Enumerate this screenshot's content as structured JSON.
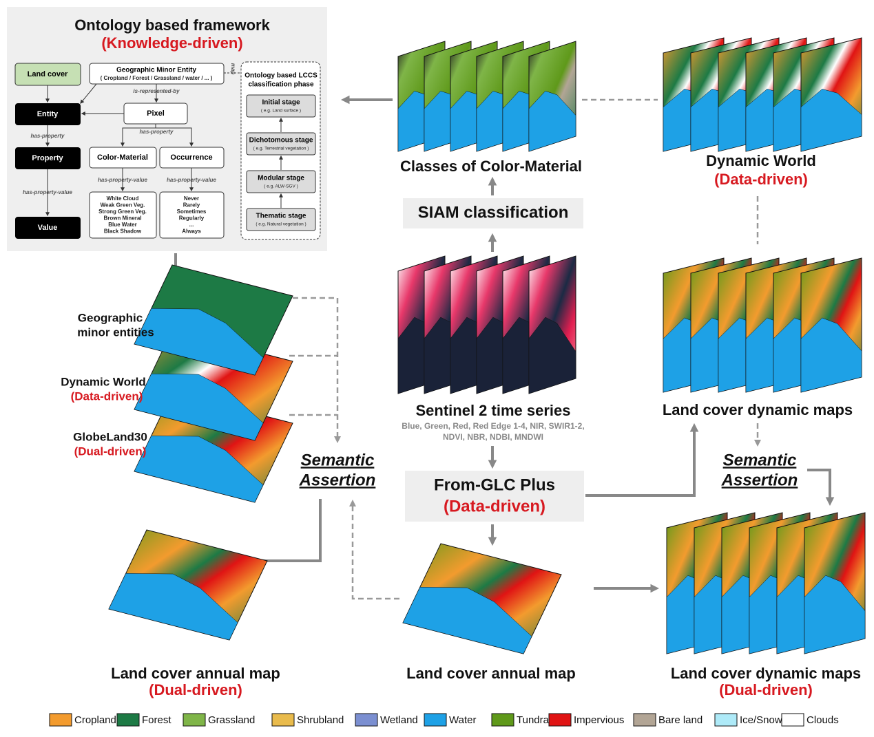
{
  "ontology": {
    "title": "Ontology based framework",
    "subtitle": "(Knowledge-driven)",
    "land_cover": "Land cover",
    "entity": "Entity",
    "property": "Property",
    "value": "Value",
    "minor_entity": {
      "title": "Geographic Minor Entity",
      "detail": "( Cropland / Forest / Grassland / water / ... )"
    },
    "pixel": "Pixel",
    "color_material": "Color-Material",
    "occurrence": "Occurrence",
    "color_material_values": [
      "White Cloud",
      "Weak Green Veg.",
      "Strong Green Veg.",
      "Brown Mineral",
      "Blue Water",
      "Black Shadow"
    ],
    "occurrence_values": [
      "Never",
      "Rarely",
      "Sometimes",
      "Regularly",
      "...",
      "Always"
    ],
    "relations": {
      "is_represented_by": "is-represented-by",
      "has_property": "has-property",
      "has_property_value": "has-property-value",
      "map": "map"
    },
    "lccs": {
      "title": [
        "Ontology based LCCS",
        "classification phase"
      ],
      "stages": [
        {
          "name": "Initial stage",
          "example": "( e.g. Land surface )"
        },
        {
          "name": "Dichotomous stage",
          "example": "( e.g. Terrestrial vegetation )"
        },
        {
          "name": "Modular stage",
          "example": "( e.g. ALW-SGV )"
        },
        {
          "name": "Thematic stage",
          "example": "( e.g. Natural vegetation )"
        }
      ]
    }
  },
  "left_stack": {
    "minor_entities": [
      "Geographic",
      "minor entities"
    ],
    "dynamic_world": {
      "name": "Dynamic World",
      "driver": "(Data-driven)"
    },
    "globeland": {
      "name": "GlobeLand30",
      "driver": "(Dual-driven)"
    }
  },
  "semantic_assertion_left": [
    "Semantic",
    "Assertion"
  ],
  "semantic_assertion_right": [
    "Semantic",
    "Assertion"
  ],
  "center": {
    "color_material_classes": "Classes of Color-Material",
    "siam": "SIAM classification",
    "sentinel": "Sentinel 2 time series",
    "bands": [
      "Blue, Green, Red, Red Edge 1-4, NIR, SWIR1-2,",
      "NDVI, NBR, NDBI, MNDWI"
    ],
    "from_glc": {
      "name": "From-GLC Plus",
      "driver": "(Data-driven)"
    },
    "annual_map": "Land cover annual map"
  },
  "right": {
    "dynamic_world": {
      "name": "Dynamic World",
      "driver": "(Data-driven)"
    },
    "dynamic_maps": "Land cover dynamic maps",
    "dual_dynamic_maps": {
      "name": "Land cover dynamic maps",
      "driver": "(Dual-driven)"
    }
  },
  "left_annual_map": {
    "name": "Land cover annual map",
    "driver": "(Dual-driven)"
  },
  "legend": {
    "items": [
      {
        "name": "Cropland",
        "color": "#f39b2e"
      },
      {
        "name": "Forest",
        "color": "#1d7a45"
      },
      {
        "name": "Grassland",
        "color": "#7fb548"
      },
      {
        "name": "Shrubland",
        "color": "#e9bb4c"
      },
      {
        "name": "Wetland",
        "color": "#7b8fd1"
      },
      {
        "name": "Water",
        "color": "#1ea1e6"
      },
      {
        "name": "Tundra",
        "color": "#5f991a"
      },
      {
        "name": "Impervious",
        "color": "#e01414"
      },
      {
        "name": "Bare land",
        "color": "#b2a595"
      },
      {
        "name": "Ice/Snow",
        "color": "#aeeaf8"
      },
      {
        "name": "Clouds",
        "color": "#ffffff"
      }
    ]
  }
}
